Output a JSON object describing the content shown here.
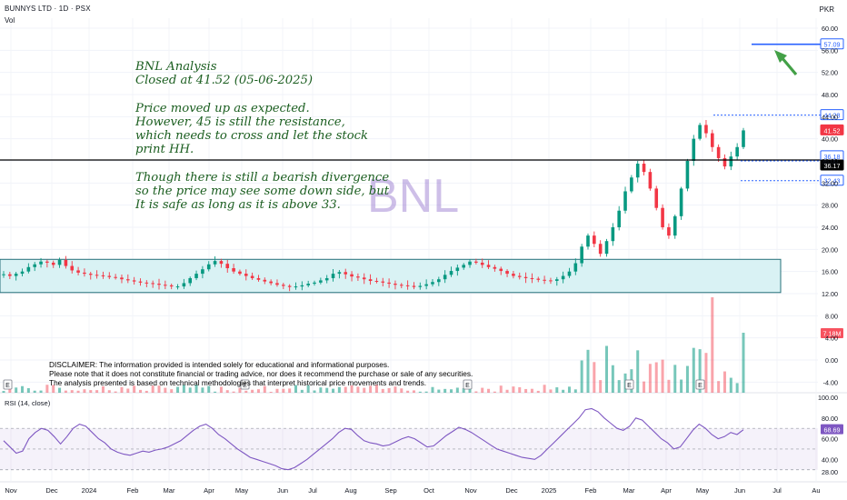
{
  "header": {
    "symbol": "BUNNYS LTD · 1D · PSX",
    "volume_label": "Vol",
    "currency": "PKR",
    "rsi_label": "RSI (14, close)"
  },
  "watermark": "BNL",
  "annotation": {
    "lines": [
      "BNL Analysis",
      "Closed at 41.52 (05-06-2025)",
      "",
      "Price moved up as expected.",
      "However, 45 is still the resistance,",
      "which needs to cross and let the stock",
      "print HH.",
      "",
      "Though there is still a bearish divergence",
      "so the price may see some down side, but",
      "It is safe as long as it is above 33."
    ]
  },
  "disclaimer": [
    "DISCLAIMER: The information provided is intended solely for educational and informational purposes.",
    "Please note that it does not constitute financial or trading advice, nor does it recommend the purchase or sale of any securities.",
    "The analysis presented is based on technical methodologies that interpret historical price movements and trends."
  ],
  "colors": {
    "up": "#089981",
    "down": "#f23645",
    "target": "#2962ff",
    "channel_fill": "#d9f2f4",
    "channel_stroke": "#26707a",
    "rsi": "#7e57c2",
    "arrow": "#43a047",
    "annotation_text": "#1b5e20"
  },
  "chart_data": {
    "type": "line",
    "title": "BUNNYS LTD · 1D · PSX",
    "x_ticks": [
      "Nov",
      "Dec",
      "2024",
      "Feb",
      "Mar",
      "Apr",
      "May",
      "Jun",
      "Jul",
      "Aug",
      "Sep",
      "Oct",
      "Nov",
      "Dec",
      "2025",
      "Feb",
      "Mar",
      "Apr",
      "May",
      "Jun",
      "Jul",
      "Au"
    ],
    "price_axis": {
      "ticks": [
        60.0,
        56.0,
        52.0,
        48.0,
        44.0,
        40.0,
        36.0,
        32.0,
        28.0,
        24.0,
        20.0,
        16.0,
        12.0,
        8.0,
        4.0,
        0.0,
        -4.0
      ]
    },
    "rsi_axis": {
      "ticks": [
        100.0,
        80.0,
        60.0,
        40.0,
        28.0
      ]
    },
    "price_labels": [
      {
        "text": "57.09",
        "value": 57.09,
        "color": "#2962ff"
      },
      {
        "text": "44.28",
        "value": 44.28,
        "color": "#2962ff"
      },
      {
        "text": "41.52",
        "value": 41.52,
        "color": "#f23645"
      },
      {
        "text": "36.18",
        "value": 36.18,
        "color": "#2962ff"
      },
      {
        "text": "36.17",
        "value": 36.17,
        "color": "#000000"
      },
      {
        "text": "32.43",
        "value": 32.43,
        "color": "#2962ff"
      }
    ],
    "volume_label": {
      "text": "7.18M",
      "value": 7.18
    },
    "rsi_label": {
      "text": "68.69",
      "value": 68.69
    },
    "levels": {
      "target": 57.09,
      "resistance": 44.28,
      "support_line": 36.17,
      "support_dotted": 32.43
    },
    "range_box": {
      "top": 18.2,
      "bottom": 12.2
    },
    "series": [
      {
        "name": "Close",
        "values": [
          15.5,
          15.2,
          15.6,
          16.0,
          16.8,
          17.3,
          17.8,
          17.6,
          17.2,
          18.1,
          17.0,
          16.2,
          15.8,
          15.6,
          15.4,
          15.3,
          15.2,
          15.0,
          14.9,
          14.6,
          14.4,
          14.2,
          14.0,
          13.9,
          13.8,
          13.6,
          13.5,
          13.3,
          13.3,
          13.9,
          14.8,
          15.6,
          16.4,
          17.3,
          17.9,
          17.4,
          16.6,
          16.0,
          15.6,
          15.2,
          14.8,
          14.5,
          14.2,
          13.9,
          13.6,
          13.4,
          13.2,
          13.3,
          13.5,
          13.8,
          14.0,
          14.4,
          14.8,
          15.6,
          15.9,
          15.5,
          15.1,
          14.9,
          14.6,
          14.3,
          14.2,
          14.0,
          13.8,
          13.6,
          13.5,
          13.4,
          13.2,
          13.4,
          13.7,
          14.1,
          14.6,
          15.4,
          16.1,
          16.7,
          17.2,
          17.8,
          17.6,
          17.2,
          16.8,
          16.5,
          16.1,
          15.6,
          15.2,
          15.0,
          14.8,
          14.7,
          14.5,
          14.4,
          14.3,
          14.6,
          15.2,
          16.0,
          17.5,
          20.5,
          22.5,
          21.0,
          19.2,
          21.5,
          24.0,
          27.0,
          30.5,
          33.0,
          35.5,
          34.0,
          31.0,
          27.5,
          24.0,
          22.5,
          26.0,
          31.0,
          36.0,
          40.0,
          42.5,
          41.0,
          38.5,
          36.5,
          35.0,
          36.8,
          38.5,
          41.52
        ]
      }
    ],
    "rsi": {
      "name": "RSI (14, close)",
      "values": [
        58,
        52,
        46,
        48,
        60,
        66,
        70,
        68,
        62,
        55,
        62,
        70,
        74,
        72,
        66,
        60,
        56,
        50,
        47,
        45,
        44,
        46,
        48,
        47,
        49,
        50,
        52,
        55,
        58,
        63,
        68,
        72,
        74,
        70,
        64,
        60,
        55,
        50,
        46,
        42,
        40,
        38,
        36,
        34,
        31,
        30,
        32,
        36,
        40,
        45,
        50,
        55,
        60,
        66,
        70,
        69,
        63,
        58,
        56,
        55,
        53,
        54,
        57,
        60,
        62,
        60,
        56,
        52,
        53,
        58,
        63,
        67,
        71,
        69,
        66,
        62,
        58,
        54,
        50,
        48,
        46,
        44,
        42,
        41,
        40,
        44,
        50,
        56,
        62,
        68,
        74,
        80,
        88,
        89,
        86,
        80,
        75,
        70,
        68,
        72,
        80,
        78,
        72,
        66,
        60,
        56,
        50,
        52,
        60,
        68,
        74,
        70,
        64,
        60,
        62,
        66,
        64,
        68.69
      ]
    }
  }
}
